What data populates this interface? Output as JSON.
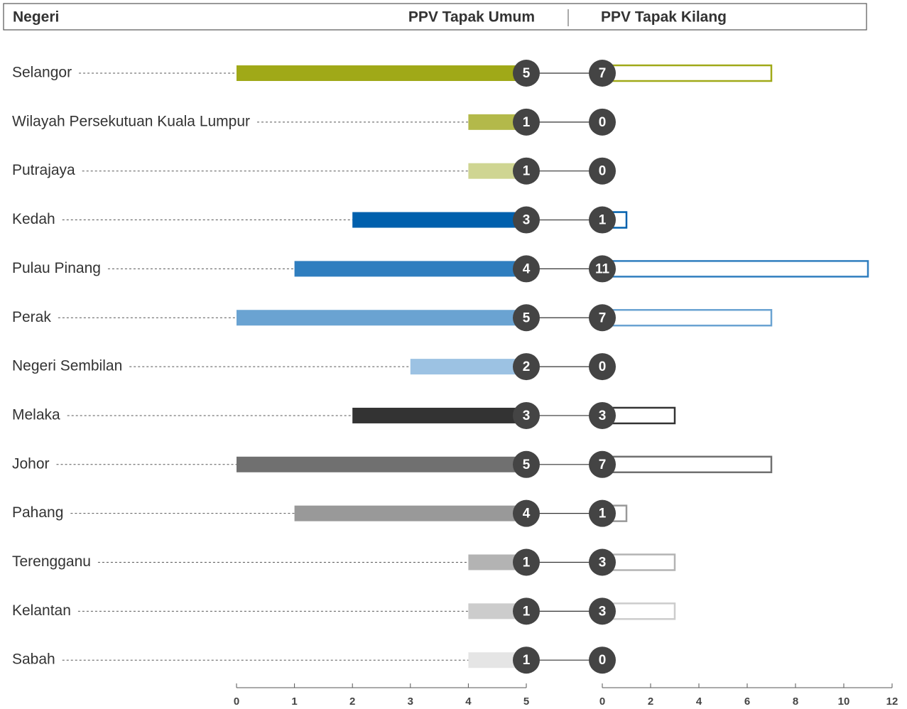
{
  "chart_data": {
    "type": "bar",
    "category_label": "Negeri",
    "categories": [
      "Selangor",
      "Wilayah Persekutuan Kuala Lumpur",
      "Putrajaya",
      "Kedah",
      "Pulau Pinang",
      "Perak",
      "Negeri Sembilan",
      "Melaka",
      "Johor",
      "Pahang",
      "Terengganu",
      "Kelantan",
      "Sabah"
    ],
    "colors": [
      "#a0a918",
      "#b3b94a",
      "#cfd592",
      "#0060ad",
      "#2f7ebf",
      "#6aa3d2",
      "#9cc2e3",
      "#333333",
      "#707070",
      "#999999",
      "#b3b3b3",
      "#cccccc",
      "#e5e5e5"
    ],
    "series": [
      {
        "name": "PPV Tapak Umum",
        "values": [
          5,
          1,
          1,
          3,
          4,
          5,
          2,
          3,
          5,
          4,
          1,
          1,
          1
        ]
      },
      {
        "name": "PPV Tapak Kilang",
        "values": [
          7,
          0,
          0,
          1,
          11,
          7,
          0,
          3,
          7,
          1,
          3,
          3,
          0
        ]
      }
    ],
    "xlim": [
      0,
      5
    ],
    "xticks": [
      0,
      1,
      2,
      3,
      4,
      5
    ],
    "x2lim": [
      0,
      12
    ],
    "x2ticks": [
      0,
      2,
      4,
      6,
      8,
      10,
      12
    ]
  }
}
